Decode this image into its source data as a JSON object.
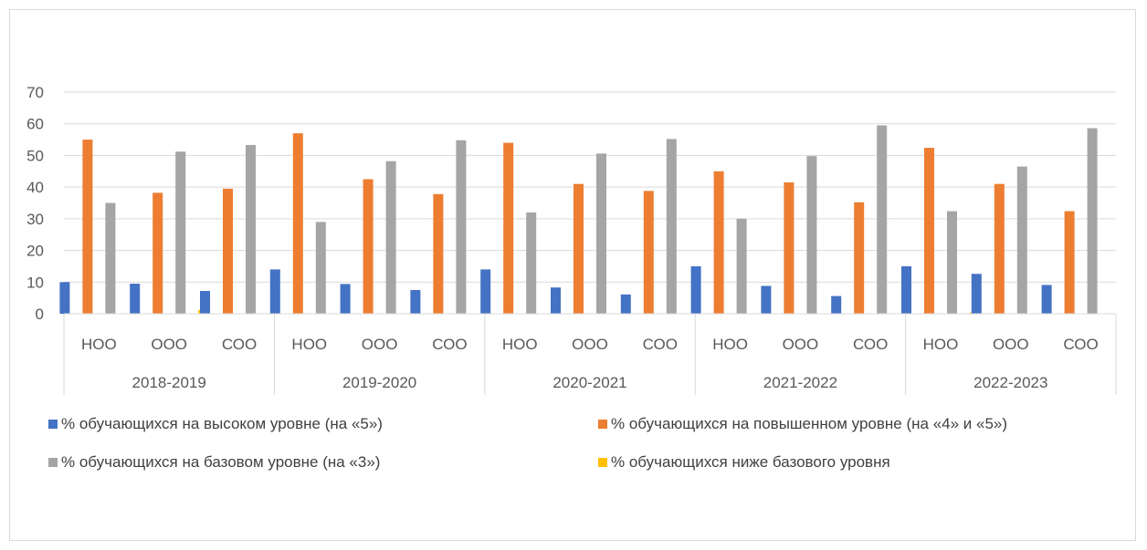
{
  "chart_data": {
    "type": "bar",
    "title": "",
    "xlabel": "",
    "ylabel": "",
    "ylim": [
      0,
      70
    ],
    "yticks": [
      0,
      10,
      20,
      30,
      40,
      50,
      60,
      70
    ],
    "grid": true,
    "legend_position": "bottom",
    "groups": [
      {
        "label": "2018-2019",
        "categories": [
          "НОО",
          "ООО",
          "СОО"
        ]
      },
      {
        "label": "2019-2020",
        "categories": [
          "НОО",
          "ООО",
          "СОО"
        ]
      },
      {
        "label": "2020-2021",
        "categories": [
          "НОО",
          "ООО",
          "СОО"
        ]
      },
      {
        "label": "2021-2022",
        "categories": [
          "НОО",
          "ООО",
          "СОО"
        ]
      },
      {
        "label": "2022-2023",
        "categories": [
          "НОО",
          "ООО",
          "СОО"
        ]
      }
    ],
    "series": [
      {
        "name": "% обучающихся на высоком уровне  (на «5»)",
        "color": "#4472C4",
        "values": [
          10,
          9.5,
          7.2,
          14,
          9.4,
          7.5,
          14,
          8.3,
          6.1,
          15,
          8.8,
          5.6,
          15,
          12.6,
          9.1
        ]
      },
      {
        "name": "% обучающихся на повышенном уровне (на «4» и «5»)",
        "color": "#ED7D31",
        "values": [
          55,
          38.2,
          39.5,
          57,
          42.5,
          37.8,
          54,
          41,
          38.8,
          45,
          41.5,
          35.2,
          52.4,
          41,
          32.4
        ]
      },
      {
        "name": "% обучающихся на базовом уровне (на «3»)",
        "color": "#A5A5A5",
        "values": [
          35,
          51.2,
          53.3,
          29,
          48.2,
          54.8,
          32,
          50.6,
          55.2,
          30,
          49.8,
          59.5,
          32.4,
          46.5,
          58.6
        ]
      },
      {
        "name": "% обучающихся ниже базового уровня",
        "color": "#FFC000",
        "values": [
          0,
          1.2,
          0,
          0,
          0,
          0,
          0,
          0,
          0,
          0,
          0,
          0,
          0.4,
          0,
          0
        ]
      }
    ]
  }
}
